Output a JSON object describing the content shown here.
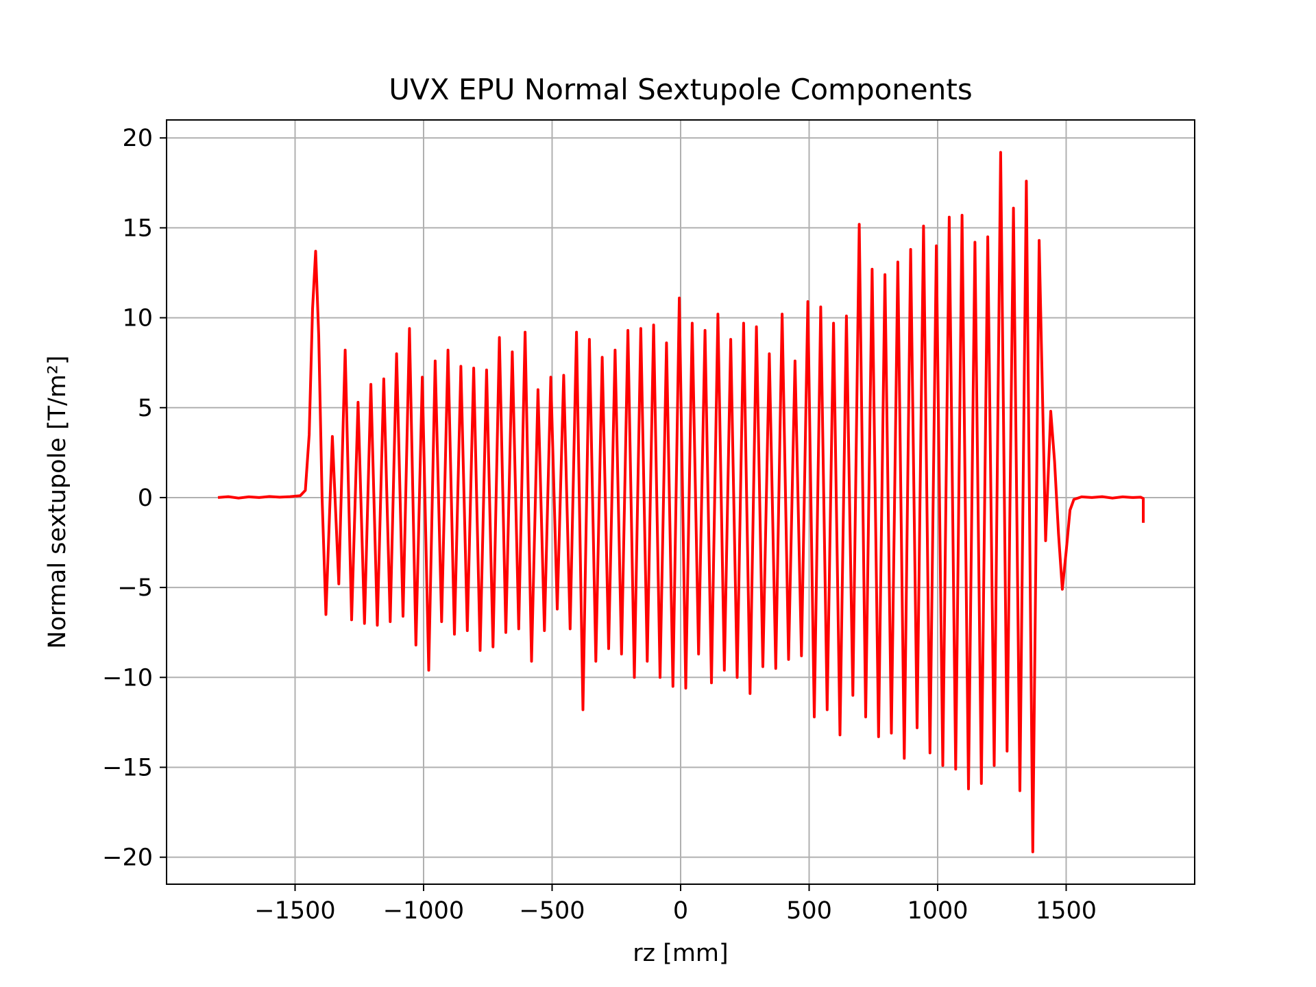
{
  "chart_data": {
    "type": "line",
    "title": "UVX EPU Normal Sextupole Components",
    "xlabel": "rz [mm]",
    "ylabel": "Normal sextupole [T/m²]",
    "xlim": [
      -2000,
      2000
    ],
    "ylim": [
      -21.5,
      21.0
    ],
    "xticks": [
      -1500,
      -1000,
      -500,
      0,
      500,
      1000,
      1500
    ],
    "xtick_labels": [
      "−1500",
      "−1000",
      "−500",
      "0",
      "500",
      "1000",
      "1500"
    ],
    "yticks": [
      -20,
      -15,
      -10,
      -5,
      0,
      5,
      10,
      15,
      20
    ],
    "ytick_labels": [
      "−20",
      "−15",
      "−10",
      "−5",
      "0",
      "5",
      "10",
      "15",
      "20"
    ],
    "grid": true,
    "legend": "none",
    "series": [
      {
        "color": "#ff0000",
        "points": [
          [
            -1800,
            0.0
          ],
          [
            -1760,
            0.05
          ],
          [
            -1720,
            -0.03
          ],
          [
            -1680,
            0.04
          ],
          [
            -1640,
            0.0
          ],
          [
            -1600,
            0.06
          ],
          [
            -1560,
            0.02
          ],
          [
            -1520,
            0.05
          ],
          [
            -1480,
            0.1
          ],
          [
            -1460,
            0.4
          ],
          [
            -1445,
            3.5
          ],
          [
            -1432,
            10.5
          ],
          [
            -1420,
            13.7
          ],
          [
            -1408,
            9.0
          ],
          [
            -1395,
            0.0
          ],
          [
            -1380,
            -6.5
          ],
          [
            -1355,
            3.4
          ],
          [
            -1330,
            -4.8
          ],
          [
            -1305,
            8.2
          ],
          [
            -1280,
            -6.8
          ],
          [
            -1255,
            5.3
          ],
          [
            -1230,
            -7.0
          ],
          [
            -1205,
            6.3
          ],
          [
            -1180,
            -7.1
          ],
          [
            -1155,
            6.6
          ],
          [
            -1130,
            -6.9
          ],
          [
            -1105,
            8.0
          ],
          [
            -1080,
            -6.6
          ],
          [
            -1055,
            9.4
          ],
          [
            -1030,
            -8.2
          ],
          [
            -1005,
            6.7
          ],
          [
            -980,
            -9.6
          ],
          [
            -955,
            7.6
          ],
          [
            -930,
            -6.9
          ],
          [
            -905,
            8.2
          ],
          [
            -880,
            -7.6
          ],
          [
            -855,
            7.3
          ],
          [
            -830,
            -7.4
          ],
          [
            -805,
            7.2
          ],
          [
            -780,
            -8.5
          ],
          [
            -755,
            7.1
          ],
          [
            -730,
            -8.3
          ],
          [
            -705,
            8.9
          ],
          [
            -680,
            -7.5
          ],
          [
            -655,
            8.1
          ],
          [
            -630,
            -7.3
          ],
          [
            -605,
            9.2
          ],
          [
            -580,
            -9.1
          ],
          [
            -555,
            6.0
          ],
          [
            -530,
            -7.4
          ],
          [
            -505,
            6.7
          ],
          [
            -480,
            -6.2
          ],
          [
            -455,
            6.8
          ],
          [
            -430,
            -7.3
          ],
          [
            -405,
            9.2
          ],
          [
            -380,
            -11.8
          ],
          [
            -355,
            8.8
          ],
          [
            -330,
            -9.1
          ],
          [
            -305,
            7.8
          ],
          [
            -280,
            -8.4
          ],
          [
            -255,
            8.2
          ],
          [
            -230,
            -8.7
          ],
          [
            -205,
            9.3
          ],
          [
            -180,
            -10.0
          ],
          [
            -155,
            9.4
          ],
          [
            -130,
            -9.1
          ],
          [
            -105,
            9.6
          ],
          [
            -80,
            -10.0
          ],
          [
            -55,
            8.6
          ],
          [
            -30,
            -10.5
          ],
          [
            -5,
            11.1
          ],
          [
            20,
            -10.6
          ],
          [
            45,
            9.7
          ],
          [
            70,
            -8.7
          ],
          [
            95,
            9.3
          ],
          [
            120,
            -10.3
          ],
          [
            145,
            10.2
          ],
          [
            170,
            -9.6
          ],
          [
            195,
            8.8
          ],
          [
            220,
            -10.0
          ],
          [
            245,
            9.7
          ],
          [
            270,
            -10.9
          ],
          [
            295,
            9.5
          ],
          [
            320,
            -9.4
          ],
          [
            345,
            8.0
          ],
          [
            370,
            -9.5
          ],
          [
            395,
            10.2
          ],
          [
            420,
            -9.0
          ],
          [
            445,
            7.6
          ],
          [
            470,
            -8.8
          ],
          [
            495,
            10.9
          ],
          [
            520,
            -12.2
          ],
          [
            545,
            10.6
          ],
          [
            570,
            -11.8
          ],
          [
            595,
            9.7
          ],
          [
            620,
            -13.2
          ],
          [
            645,
            10.1
          ],
          [
            670,
            -11.0
          ],
          [
            695,
            15.2
          ],
          [
            720,
            -12.2
          ],
          [
            745,
            12.7
          ],
          [
            770,
            -13.3
          ],
          [
            795,
            12.4
          ],
          [
            820,
            -13.1
          ],
          [
            845,
            13.1
          ],
          [
            870,
            -14.5
          ],
          [
            895,
            13.8
          ],
          [
            920,
            -12.8
          ],
          [
            945,
            15.1
          ],
          [
            970,
            -14.2
          ],
          [
            995,
            14.0
          ],
          [
            1020,
            -14.9
          ],
          [
            1045,
            15.6
          ],
          [
            1070,
            -15.1
          ],
          [
            1095,
            15.7
          ],
          [
            1120,
            -16.2
          ],
          [
            1145,
            14.2
          ],
          [
            1170,
            -15.9
          ],
          [
            1195,
            14.5
          ],
          [
            1220,
            -14.9
          ],
          [
            1245,
            19.2
          ],
          [
            1270,
            -14.1
          ],
          [
            1295,
            16.1
          ],
          [
            1320,
            -16.3
          ],
          [
            1345,
            17.6
          ],
          [
            1370,
            -19.7
          ],
          [
            1395,
            14.3
          ],
          [
            1420,
            -2.4
          ],
          [
            1440,
            4.8
          ],
          [
            1455,
            2.0
          ],
          [
            1470,
            -2.0
          ],
          [
            1485,
            -5.1
          ],
          [
            1500,
            -3.0
          ],
          [
            1515,
            -0.7
          ],
          [
            1530,
            -0.1
          ],
          [
            1560,
            0.04
          ],
          [
            1600,
            0.0
          ],
          [
            1640,
            0.05
          ],
          [
            1680,
            -0.03
          ],
          [
            1720,
            0.04
          ],
          [
            1760,
            0.0
          ],
          [
            1790,
            0.02
          ],
          [
            1800,
            -0.05
          ],
          [
            1800,
            -1.4
          ]
        ]
      }
    ]
  }
}
